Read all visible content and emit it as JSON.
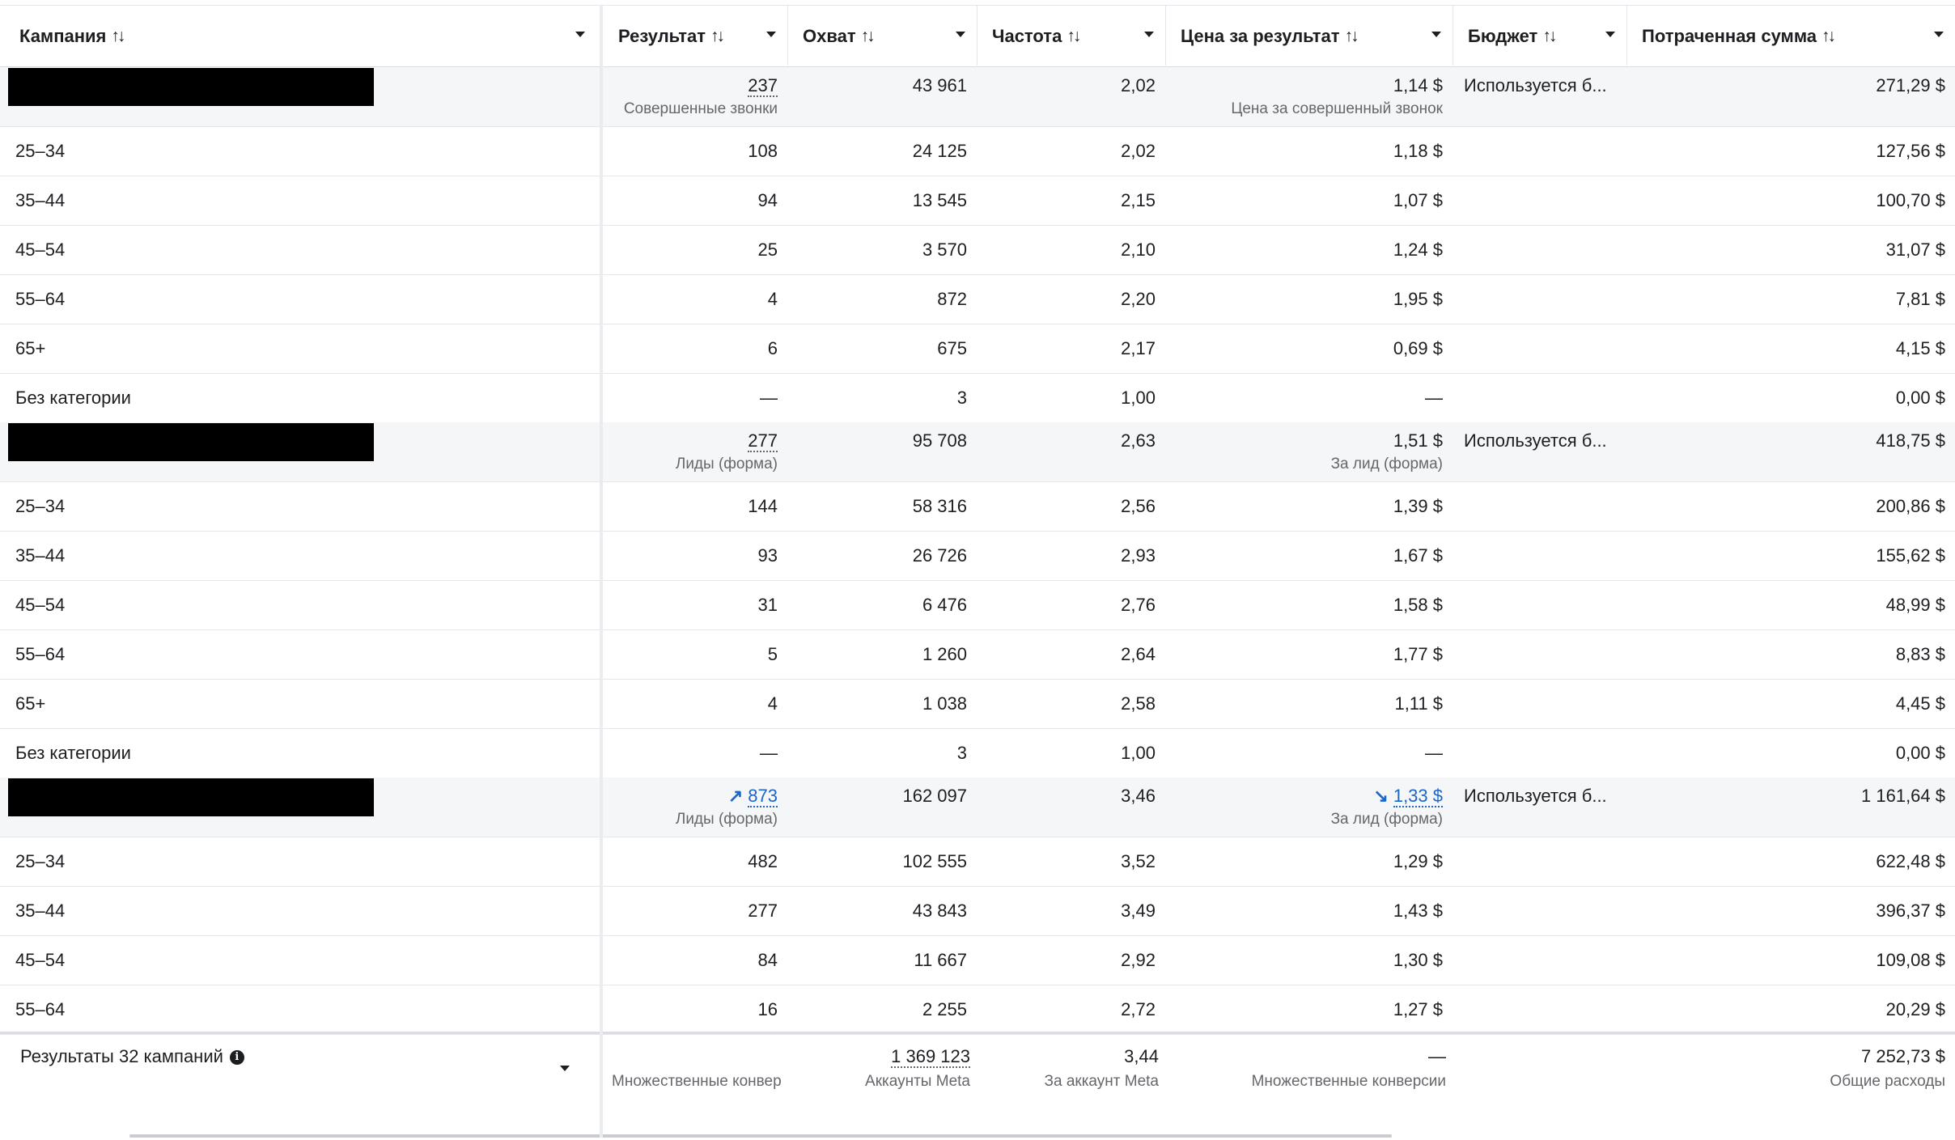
{
  "columns": [
    {
      "label": "Кампания",
      "sortable": true
    },
    {
      "label": "Результат",
      "sortable": true
    },
    {
      "label": "Охват",
      "sortable": true
    },
    {
      "label": "Частота",
      "sortable": true
    },
    {
      "label": "Цена за результат",
      "sortable": true
    },
    {
      "label": "Бюджет",
      "sortable": true
    },
    {
      "label": "Потраченная сумма",
      "sortable": true
    }
  ],
  "rows": [
    {
      "type": "campaign",
      "name": "",
      "result": "237",
      "result_sub": "Совершенные звонки",
      "reach": "43 961",
      "freq": "2,02",
      "cpr": "1,14 $",
      "cpr_sub": "Цена за совершенный звонок",
      "budget": "Используется б...",
      "spent": "271,29 $"
    },
    {
      "type": "breakdown",
      "name": "25–34",
      "result": "108",
      "reach": "24 125",
      "freq": "2,02",
      "cpr": "1,18 $",
      "spent": "127,56 $"
    },
    {
      "type": "breakdown",
      "name": "35–44",
      "result": "94",
      "reach": "13 545",
      "freq": "2,15",
      "cpr": "1,07 $",
      "spent": "100,70 $"
    },
    {
      "type": "breakdown",
      "name": "45–54",
      "result": "25",
      "reach": "3 570",
      "freq": "2,10",
      "cpr": "1,24 $",
      "spent": "31,07 $"
    },
    {
      "type": "breakdown",
      "name": "55–64",
      "result": "4",
      "reach": "872",
      "freq": "2,20",
      "cpr": "1,95 $",
      "spent": "7,81 $"
    },
    {
      "type": "breakdown",
      "name": "65+",
      "result": "6",
      "reach": "675",
      "freq": "2,17",
      "cpr": "0,69 $",
      "spent": "4,15 $"
    },
    {
      "type": "breakdown",
      "name": "Без категории",
      "result": "—",
      "reach": "3",
      "freq": "1,00",
      "cpr": "—",
      "spent": "0,00 $"
    },
    {
      "type": "campaign",
      "name": "",
      "result": "277",
      "result_sub": "Лиды (форма)",
      "reach": "95 708",
      "freq": "2,63",
      "cpr": "1,51 $",
      "cpr_sub": "За лид (форма)",
      "budget": "Используется б...",
      "spent": "418,75 $"
    },
    {
      "type": "breakdown",
      "name": "25–34",
      "result": "144",
      "reach": "58 316",
      "freq": "2,56",
      "cpr": "1,39 $",
      "spent": "200,86 $"
    },
    {
      "type": "breakdown",
      "name": "35–44",
      "result": "93",
      "reach": "26 726",
      "freq": "2,93",
      "cpr": "1,67 $",
      "spent": "155,62 $"
    },
    {
      "type": "breakdown",
      "name": "45–54",
      "result": "31",
      "reach": "6 476",
      "freq": "2,76",
      "cpr": "1,58 $",
      "spent": "48,99 $"
    },
    {
      "type": "breakdown",
      "name": "55–64",
      "result": "5",
      "reach": "1 260",
      "freq": "2,64",
      "cpr": "1,77 $",
      "spent": "8,83 $"
    },
    {
      "type": "breakdown",
      "name": "65+",
      "result": "4",
      "reach": "1 038",
      "freq": "2,58",
      "cpr": "1,11 $",
      "spent": "4,45 $"
    },
    {
      "type": "breakdown",
      "name": "Без категории",
      "result": "—",
      "reach": "3",
      "freq": "1,00",
      "cpr": "—",
      "spent": "0,00 $"
    },
    {
      "type": "campaign",
      "name": "",
      "result": "873",
      "result_sub": "Лиды (форма)",
      "result_trend": "up",
      "reach": "162 097",
      "freq": "3,46",
      "cpr": "1,33 $",
      "cpr_sub": "За лид (форма)",
      "cpr_trend": "down",
      "budget": "Используется б...",
      "spent": "1 161,64 $"
    },
    {
      "type": "breakdown",
      "name": "25–34",
      "result": "482",
      "reach": "102 555",
      "freq": "3,52",
      "cpr": "1,29 $",
      "spent": "622,48 $"
    },
    {
      "type": "breakdown",
      "name": "35–44",
      "result": "277",
      "reach": "43 843",
      "freq": "3,49",
      "cpr": "1,43 $",
      "spent": "396,37 $"
    },
    {
      "type": "breakdown",
      "name": "45–54",
      "result": "84",
      "reach": "11 667",
      "freq": "2,92",
      "cpr": "1,30 $",
      "spent": "109,08 $"
    },
    {
      "type": "breakdown",
      "name": "55–64",
      "result": "16",
      "reach": "2 255",
      "freq": "2,72",
      "cpr": "1,27 $",
      "spent": "20,29 $"
    }
  ],
  "footer": {
    "title": "Результаты 32 кампаний",
    "result_sub": "Множественные конвер",
    "reach": "1 369 123",
    "reach_sub": "Аккаунты Meta",
    "freq": "3,44",
    "freq_sub": "За аккаунт Meta",
    "cpr": "—",
    "cpr_sub": "Множественные конверсии",
    "spent": "7 252,73 $",
    "spent_sub": "Общие расходы"
  },
  "icons": {
    "sort": "sort-icon",
    "dropdown": "chevron-down-icon",
    "info": "info-icon",
    "trend_up": "trend-up-icon",
    "trend_down": "trend-down-icon"
  },
  "colors": {
    "link": "#1a66c9",
    "campaign_row_bg": "#f5f6f7",
    "text": "#1c1e21",
    "muted": "#65676b"
  }
}
